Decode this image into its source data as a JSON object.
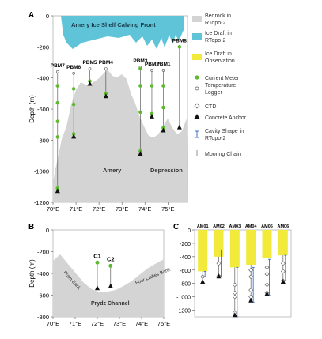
{
  "panels": {
    "A": {
      "letter": "A",
      "ylabel": "Depth (m)",
      "yticks": [
        "0",
        "-200",
        "-400",
        "-600",
        "-800",
        "-1000",
        "-1200"
      ],
      "xticks": [
        "70°E",
        "71°E",
        "72°E",
        "73°E",
        "74°E",
        "75°E"
      ],
      "calving_front_label": "Amery Ice Shelf Calving Front",
      "region_label_1": "Amery",
      "region_label_2": "Depression",
      "moorings": [
        {
          "name": "PBM7",
          "lon": 70.2,
          "top": -360,
          "bottom": -1130,
          "meters": [
            -450,
            -560,
            -680,
            -780,
            -1110
          ]
        },
        {
          "name": "PBM6",
          "lon": 70.9,
          "top": -370,
          "bottom": -780,
          "meters": [
            -470,
            -570,
            -760
          ]
        },
        {
          "name": "PBM5",
          "lon": 71.6,
          "top": -340,
          "bottom": -440,
          "meters": [
            -420
          ]
        },
        {
          "name": "PBM4",
          "lon": 72.3,
          "top": -340,
          "bottom": -520,
          "meters": [
            -500
          ]
        },
        {
          "name": "PBM3",
          "lon": 73.8,
          "top": -330,
          "bottom": -890,
          "meters": [
            -340,
            -450,
            -620,
            -870
          ]
        },
        {
          "name": "PBM2",
          "lon": 74.3,
          "top": -350,
          "bottom": -650,
          "meters": [
            -450,
            -630
          ]
        },
        {
          "name": "PBM1",
          "lon": 74.8,
          "top": -350,
          "bottom": -740,
          "meters": [
            -450,
            -590,
            -720
          ]
        },
        {
          "name": "PBM8",
          "lon": 75.5,
          "top": -200,
          "bottom": -720,
          "meters": [
            -200
          ]
        }
      ]
    },
    "B": {
      "letter": "B",
      "ylabel": "Depth (m)",
      "yticks": [
        "0",
        "-200",
        "-400",
        "-600",
        "-800"
      ],
      "xticks": [
        "70°E",
        "71°E",
        "72°E",
        "73°E",
        "74°E",
        "75°E"
      ],
      "bank_left": "Fram Bank",
      "bank_right": "Four Ladies Bank",
      "channel": "Prydz Channel",
      "moorings": [
        {
          "name": "C1",
          "lon": 72.0,
          "top": -300,
          "bottom": -540
        },
        {
          "name": "C2",
          "lon": 72.6,
          "top": -330,
          "bottom": -520
        }
      ]
    },
    "C": {
      "letter": "C",
      "yticks": [
        "0",
        "-200",
        "-400",
        "-600",
        "-800",
        "-1000",
        "-1200"
      ],
      "moorings": [
        {
          "name": "AM01",
          "draft": -620,
          "bottom": -780,
          "cavity": [
            -620,
            -700
          ],
          "instruments": [
            -700
          ]
        },
        {
          "name": "AM02",
          "draft": -400,
          "bottom": -700,
          "cavity": [
            -300,
            -700
          ],
          "instruments": [
            -500,
            -690
          ]
        },
        {
          "name": "AM03",
          "draft": -560,
          "bottom": -1280,
          "cavity": [
            -560,
            -1300
          ],
          "instruments": [
            -820,
            -940,
            -1000,
            -1240
          ]
        },
        {
          "name": "AM04",
          "draft": -520,
          "bottom": -1060,
          "cavity": [
            -560,
            -1080
          ],
          "instruments": [
            -600,
            -700,
            -900,
            -1000
          ]
        },
        {
          "name": "AM05",
          "draft": -420,
          "bottom": -960,
          "cavity": [
            -440,
            -980
          ],
          "instruments": [
            -560,
            -660,
            -820,
            -940
          ]
        },
        {
          "name": "AM06",
          "draft": -380,
          "bottom": -780,
          "cavity": [
            -380,
            -760
          ],
          "instruments": [
            -500,
            -620,
            -760
          ]
        }
      ]
    }
  },
  "legend": [
    {
      "label": "Bedrock in RTopo-2",
      "swatch": "bedrock"
    },
    {
      "label": "Ice Draft in RTopo-2",
      "swatch": "ice-rtopo"
    },
    {
      "label": "Ice Draft in Observation",
      "swatch": "ice-obs"
    },
    {
      "label": "Current Meter",
      "swatch": "current-meter"
    },
    {
      "label": "Temperature Logger",
      "swatch": "temp-logger"
    },
    {
      "label": "CTD",
      "swatch": "ctd"
    },
    {
      "label": "Concrete Anchor",
      "swatch": "anchor"
    },
    {
      "label": "Cavity Shape in RTopo-2",
      "swatch": "cavity"
    },
    {
      "label": "Mooring Chain",
      "swatch": "chain"
    }
  ],
  "colors": {
    "bedrock": "#d4d4d4",
    "ice_rtopo": "#5fc4d8",
    "ice_obs": "#f2ea3a",
    "current_meter": "#5fb832",
    "anchor": "#111111",
    "cavity": "#3b73c9"
  }
}
